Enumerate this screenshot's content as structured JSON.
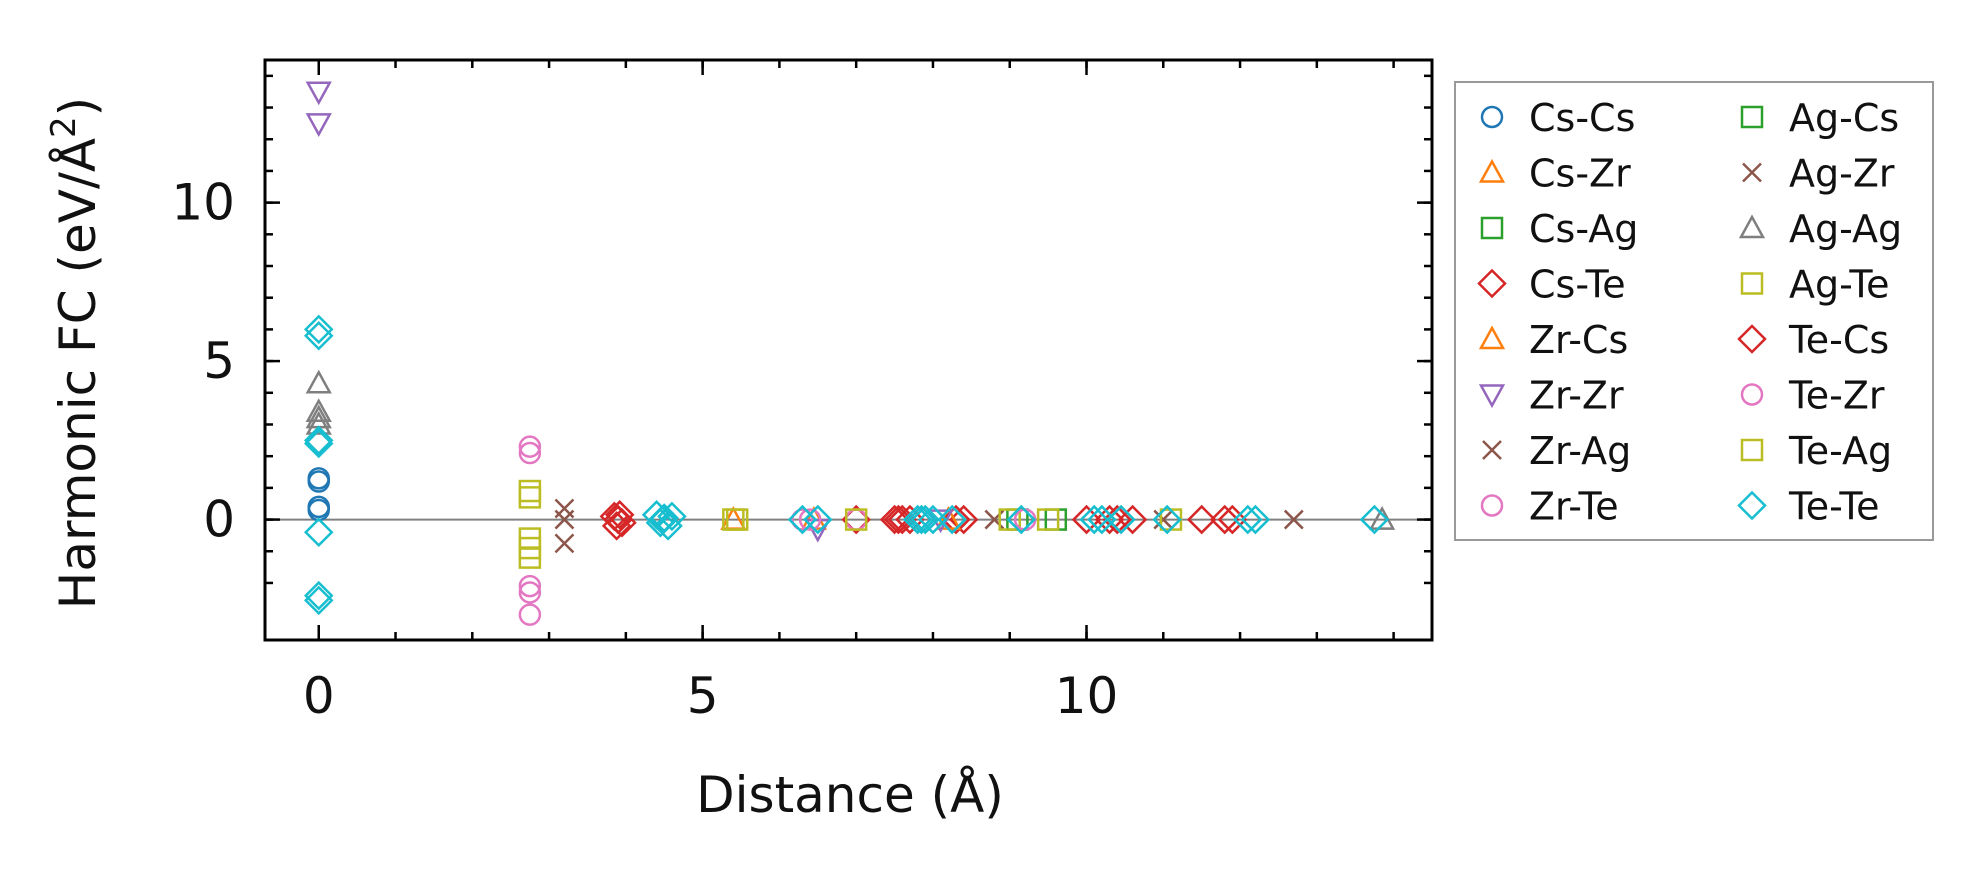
{
  "chart_data": {
    "type": "scatter",
    "title": "",
    "xlabel": "Distance (Å)",
    "ylabel_main": "Harmonic FC (eV/Å",
    "ylabel_sup": "2",
    "ylabel_close": ")",
    "xlim": [
      -0.7,
      14.5
    ],
    "ylim": [
      -3.8,
      14.5
    ],
    "xticks": [
      0,
      5,
      10
    ],
    "xtick_labels": [
      "0",
      "5",
      "10"
    ],
    "yticks": [
      0,
      5,
      10
    ],
    "ytick_labels": [
      "0",
      "5",
      "10"
    ],
    "zero_line": true,
    "grid": false,
    "legend_position": "outside-right",
    "legend_columns": 2,
    "series": [
      {
        "name": "Cs-Cs",
        "marker": "circle",
        "color": "#1f77b4",
        "points": [
          [
            0,
            1.3
          ],
          [
            0,
            1.2
          ],
          [
            0,
            0.4
          ],
          [
            0,
            0.3
          ]
        ]
      },
      {
        "name": "Cs-Zr",
        "marker": "triangle-up",
        "color": "#ff7f0e",
        "points": [
          [
            6.45,
            0
          ]
        ]
      },
      {
        "name": "Cs-Ag",
        "marker": "square",
        "color": "#2ca02c",
        "points": [
          [
            9.1,
            0
          ]
        ]
      },
      {
        "name": "Cs-Te",
        "marker": "diamond",
        "color": "#d62728",
        "points": [
          [
            3.85,
            0.1
          ],
          [
            3.9,
            0
          ],
          [
            3.95,
            -0.1
          ],
          [
            3.88,
            -0.2
          ],
          [
            3.92,
            0.15
          ],
          [
            7.0,
            0
          ],
          [
            7.5,
            0
          ],
          [
            7.6,
            0
          ],
          [
            7.7,
            0
          ],
          [
            8.3,
            0
          ],
          [
            8.4,
            0
          ],
          [
            10.0,
            0
          ],
          [
            10.4,
            0
          ],
          [
            10.6,
            0
          ],
          [
            11.5,
            0
          ],
          [
            11.8,
            0
          ]
        ]
      },
      {
        "name": "Zr-Cs",
        "marker": "triangle-up",
        "color": "#ff7f0e",
        "points": [
          [
            5.4,
            0
          ],
          [
            8.2,
            0
          ]
        ]
      },
      {
        "name": "Zr-Zr",
        "marker": "triangle-down",
        "color": "#9467bd",
        "points": [
          [
            0,
            13.5
          ],
          [
            0,
            12.5
          ],
          [
            6.5,
            -0.3
          ],
          [
            8.1,
            0
          ]
        ]
      },
      {
        "name": "Zr-Ag",
        "marker": "x",
        "color": "#8c564b",
        "points": [
          [
            3.2,
            0.35
          ],
          [
            3.2,
            0
          ],
          [
            3.2,
            -0.75
          ],
          [
            8.8,
            0
          ],
          [
            12.7,
            0
          ]
        ]
      },
      {
        "name": "Zr-Te",
        "marker": "circle",
        "color": "#e377c2",
        "points": [
          [
            2.75,
            2.3
          ],
          [
            2.75,
            2.1
          ],
          [
            2.75,
            -2.1
          ],
          [
            2.75,
            -2.3
          ],
          [
            2.75,
            -3.0
          ],
          [
            6.3,
            0
          ],
          [
            7.0,
            0
          ]
        ]
      },
      {
        "name": "Ag-Cs",
        "marker": "square",
        "color": "#2ca02c",
        "points": [
          [
            9.6,
            0
          ]
        ]
      },
      {
        "name": "Ag-Zr",
        "marker": "x",
        "color": "#8c564b",
        "points": [
          [
            11.0,
            0
          ]
        ]
      },
      {
        "name": "Ag-Ag",
        "marker": "triangle-up",
        "color": "#7f7f7f",
        "points": [
          [
            0,
            4.3
          ],
          [
            0,
            3.4
          ],
          [
            0,
            3.2
          ],
          [
            0,
            3.0
          ],
          [
            13.85,
            0
          ]
        ]
      },
      {
        "name": "Ag-Te",
        "marker": "square",
        "color": "#bcbd22",
        "points": [
          [
            2.75,
            0.9
          ],
          [
            2.75,
            0.7
          ],
          [
            2.75,
            -0.6
          ],
          [
            2.75,
            -0.9
          ],
          [
            2.75,
            -1.2
          ],
          [
            5.4,
            0
          ],
          [
            7.0,
            0
          ],
          [
            9.0,
            0
          ],
          [
            9.5,
            0
          ],
          [
            11.1,
            0
          ]
        ]
      },
      {
        "name": "Te-Cs",
        "marker": "diamond",
        "color": "#d62728",
        "points": [
          [
            7.55,
            0
          ],
          [
            10.3,
            0
          ],
          [
            11.9,
            0
          ]
        ]
      },
      {
        "name": "Te-Zr",
        "marker": "circle",
        "color": "#e377c2",
        "points": [
          [
            6.4,
            0
          ],
          [
            9.2,
            0
          ]
        ]
      },
      {
        "name": "Te-Ag",
        "marker": "square",
        "color": "#bcbd22",
        "points": [
          [
            5.45,
            0
          ]
        ]
      },
      {
        "name": "Te-Te",
        "marker": "diamond",
        "color": "#17becf",
        "points": [
          [
            0,
            6.0
          ],
          [
            0,
            5.8
          ],
          [
            0,
            2.5
          ],
          [
            0,
            2.4
          ],
          [
            0,
            -0.4
          ],
          [
            0,
            -2.4
          ],
          [
            0,
            -2.55
          ],
          [
            4.4,
            0.15
          ],
          [
            4.45,
            -0.1
          ],
          [
            4.5,
            0.05
          ],
          [
            4.55,
            -0.2
          ],
          [
            4.6,
            0.1
          ],
          [
            4.48,
            0
          ],
          [
            6.3,
            0
          ],
          [
            6.5,
            0
          ],
          [
            7.8,
            0
          ],
          [
            7.85,
            0
          ],
          [
            7.9,
            0
          ],
          [
            8.0,
            0
          ],
          [
            8.25,
            0
          ],
          [
            9.15,
            0
          ],
          [
            10.1,
            0
          ],
          [
            10.2,
            0
          ],
          [
            10.45,
            0
          ],
          [
            11.05,
            0
          ],
          [
            12.1,
            0
          ],
          [
            12.2,
            0
          ],
          [
            13.75,
            0
          ]
        ]
      }
    ]
  }
}
